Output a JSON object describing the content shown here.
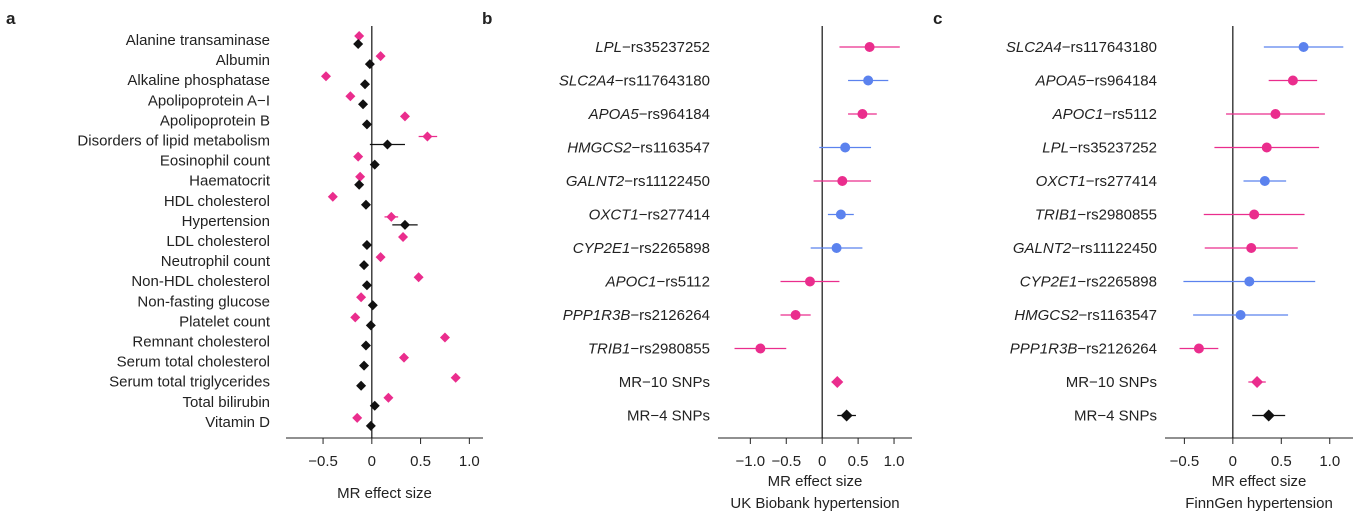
{
  "colors": {
    "pink": "#ea2d8d",
    "blue": "#5b82ee",
    "black": "#111111"
  },
  "chart_data": [
    {
      "panel": "a",
      "type": "scatter",
      "marker": "diamond",
      "xlabel": "MR effect size",
      "xticks": [
        -0.5,
        0,
        0.5,
        1.0
      ],
      "tick_labels": [
        "−0.5",
        "0",
        "0.5",
        "1.0"
      ],
      "xlim": [
        -0.88,
        1.14
      ],
      "categories": [
        "Alanine transaminase",
        "Albumin",
        "Alkaline phosphatase",
        "Apolipoprotein A−I",
        "Apolipoprotein B",
        "Disorders of lipid metabolism",
        "Eosinophil count",
        "Haematocrit",
        "HDL cholesterol",
        "Hypertension",
        "LDL cholesterol",
        "Neutrophil count",
        "Non-HDL cholesterol",
        "Non-fasting glucose",
        "Platelet count",
        "Remnant cholesterol",
        "Serum total cholesterol",
        "Serum total triglycerides",
        "Total bilirubin",
        "Vitamin D"
      ],
      "series": [
        {
          "color": "pink",
          "values": [
            -0.13,
            0.09,
            -0.47,
            -0.22,
            0.34,
            0.57,
            -0.14,
            -0.12,
            -0.4,
            0.2,
            0.32,
            0.09,
            0.48,
            -0.11,
            -0.17,
            0.75,
            0.33,
            0.86,
            0.17,
            -0.15
          ],
          "ci_low": [
            null,
            null,
            null,
            null,
            null,
            0.48,
            null,
            null,
            null,
            0.13,
            null,
            null,
            null,
            null,
            null,
            null,
            null,
            null,
            null,
            null
          ],
          "ci_high": [
            null,
            null,
            null,
            null,
            null,
            0.67,
            null,
            null,
            null,
            0.27,
            null,
            null,
            null,
            null,
            null,
            null,
            null,
            null,
            null,
            null
          ]
        },
        {
          "color": "black",
          "values": [
            -0.14,
            -0.02,
            -0.07,
            -0.09,
            -0.05,
            0.16,
            0.03,
            -0.13,
            -0.06,
            0.34,
            -0.05,
            -0.08,
            -0.05,
            0.01,
            -0.01,
            -0.06,
            -0.08,
            -0.11,
            0.03,
            -0.01
          ],
          "ci_low": [
            null,
            null,
            null,
            null,
            null,
            -0.02,
            null,
            null,
            null,
            0.21,
            null,
            null,
            null,
            null,
            null,
            null,
            null,
            null,
            null,
            null
          ],
          "ci_high": [
            null,
            null,
            null,
            null,
            null,
            0.34,
            null,
            null,
            null,
            0.47,
            null,
            null,
            null,
            null,
            null,
            null,
            null,
            null,
            null,
            null
          ]
        }
      ]
    },
    {
      "panel": "b",
      "type": "forest",
      "xlabel": "MR effect size",
      "xlabel2": "UK Biobank hypertension",
      "xticks": [
        -1.0,
        -0.5,
        0,
        0.5,
        1.0
      ],
      "tick_labels": [
        "−1.0",
        "−0.5",
        "0",
        "0.5",
        "1.0"
      ],
      "xlim": [
        -1.45,
        1.25
      ],
      "rows": [
        {
          "gene": "LPL",
          "snp": "−rs35237252",
          "value": 0.66,
          "low": 0.24,
          "high": 1.08,
          "color": "pink",
          "marker": "circle"
        },
        {
          "gene": "SLC2A4",
          "snp": "−rs117643180",
          "value": 0.64,
          "low": 0.36,
          "high": 0.92,
          "color": "blue",
          "marker": "circle"
        },
        {
          "gene": "APOA5",
          "snp": "−rs964184",
          "value": 0.56,
          "low": 0.36,
          "high": 0.76,
          "color": "pink",
          "marker": "circle"
        },
        {
          "gene": "HMGCS2",
          "snp": "−rs1163547",
          "value": 0.32,
          "low": -0.04,
          "high": 0.68,
          "color": "blue",
          "marker": "circle"
        },
        {
          "gene": "GALNT2",
          "snp": "−rs11122450",
          "value": 0.28,
          "low": -0.12,
          "high": 0.68,
          "color": "pink",
          "marker": "circle"
        },
        {
          "gene": "OXCT1",
          "snp": "−rs277414",
          "value": 0.26,
          "low": 0.08,
          "high": 0.44,
          "color": "blue",
          "marker": "circle"
        },
        {
          "gene": "CYP2E1",
          "snp": "−rs2265898",
          "value": 0.2,
          "low": -0.16,
          "high": 0.56,
          "color": "blue",
          "marker": "circle"
        },
        {
          "gene": "APOC1",
          "snp": "−rs5112",
          "value": -0.17,
          "low": -0.58,
          "high": 0.24,
          "color": "pink",
          "marker": "circle"
        },
        {
          "gene": "PPP1R3B",
          "snp": "−rs2126264",
          "value": -0.37,
          "low": -0.58,
          "high": -0.16,
          "color": "pink",
          "marker": "circle"
        },
        {
          "gene": "TRIB1",
          "snp": "−rs2980855",
          "value": -0.86,
          "low": -1.22,
          "high": -0.5,
          "color": "pink",
          "marker": "circle"
        },
        {
          "gene": "",
          "snp": "MR−10 SNPs",
          "value": 0.21,
          "low": 0.13,
          "high": 0.28,
          "color": "pink",
          "marker": "diamond"
        },
        {
          "gene": "",
          "snp": "MR−4 SNPs",
          "value": 0.34,
          "low": 0.21,
          "high": 0.47,
          "color": "black",
          "marker": "diamond"
        }
      ]
    },
    {
      "panel": "c",
      "type": "forest",
      "xlabel": "MR effect size",
      "xlabel2": "FinnGen hypertension",
      "xticks": [
        -0.5,
        0,
        0.5,
        1.0
      ],
      "tick_labels": [
        "−0.5",
        "0",
        "0.5",
        "1.0"
      ],
      "xlim": [
        -0.7,
        1.24
      ],
      "rows": [
        {
          "gene": "SLC2A4",
          "snp": "−rs117643180",
          "value": 0.73,
          "low": 0.32,
          "high": 1.14,
          "color": "blue",
          "marker": "circle"
        },
        {
          "gene": "APOA5",
          "snp": "−rs964184",
          "value": 0.62,
          "low": 0.37,
          "high": 0.87,
          "color": "pink",
          "marker": "circle"
        },
        {
          "gene": "APOC1",
          "snp": "−rs5112",
          "value": 0.44,
          "low": -0.07,
          "high": 0.95,
          "color": "pink",
          "marker": "circle"
        },
        {
          "gene": "LPL",
          "snp": "−rs35237252",
          "value": 0.35,
          "low": -0.19,
          "high": 0.89,
          "color": "pink",
          "marker": "circle"
        },
        {
          "gene": "OXCT1",
          "snp": "−rs277414",
          "value": 0.33,
          "low": 0.11,
          "high": 0.55,
          "color": "blue",
          "marker": "circle"
        },
        {
          "gene": "TRIB1",
          "snp": "−rs2980855",
          "value": 0.22,
          "low": -0.3,
          "high": 0.74,
          "color": "pink",
          "marker": "circle"
        },
        {
          "gene": "GALNT2",
          "snp": "−rs11122450",
          "value": 0.19,
          "low": -0.29,
          "high": 0.67,
          "color": "pink",
          "marker": "circle"
        },
        {
          "gene": "CYP2E1",
          "snp": "−rs2265898",
          "value": 0.17,
          "low": -0.51,
          "high": 0.85,
          "color": "blue",
          "marker": "circle"
        },
        {
          "gene": "HMGCS2",
          "snp": "−rs1163547",
          "value": 0.08,
          "low": -0.41,
          "high": 0.57,
          "color": "blue",
          "marker": "circle"
        },
        {
          "gene": "PPP1R3B",
          "snp": "−rs2126264",
          "value": -0.35,
          "low": -0.55,
          "high": -0.15,
          "color": "pink",
          "marker": "circle"
        },
        {
          "gene": "",
          "snp": "MR−10 SNPs",
          "value": 0.25,
          "low": 0.16,
          "high": 0.34,
          "color": "pink",
          "marker": "diamond"
        },
        {
          "gene": "",
          "snp": "MR−4 SNPs",
          "value": 0.37,
          "low": 0.2,
          "high": 0.54,
          "color": "black",
          "marker": "diamond"
        }
      ]
    }
  ]
}
